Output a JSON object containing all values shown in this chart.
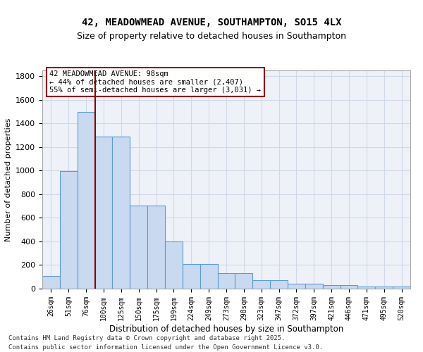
{
  "title_line1": "42, MEADOWMEAD AVENUE, SOUTHAMPTON, SO15 4LX",
  "title_line2": "Size of property relative to detached houses in Southampton",
  "xlabel": "Distribution of detached houses by size in Southampton",
  "ylabel": "Number of detached properties",
  "categories": [
    "26sqm",
    "51sqm",
    "76sqm",
    "100sqm",
    "125sqm",
    "150sqm",
    "175sqm",
    "199sqm",
    "224sqm",
    "249sqm",
    "273sqm",
    "298sqm",
    "323sqm",
    "347sqm",
    "372sqm",
    "397sqm",
    "421sqm",
    "446sqm",
    "471sqm",
    "495sqm",
    "520sqm"
  ],
  "values": [
    105,
    995,
    1500,
    1290,
    1290,
    705,
    705,
    400,
    210,
    210,
    130,
    130,
    70,
    70,
    40,
    40,
    30,
    30,
    20,
    20,
    20
  ],
  "bar_color": "#c9d9f0",
  "bar_edge_color": "#5b9bd5",
  "vline_x": 2,
  "vline_color": "#8b0000",
  "annotation_text": "42 MEADOWMEAD AVENUE: 98sqm\n← 44% of detached houses are smaller (2,407)\n55% of semi-detached houses are larger (3,031) →",
  "annotation_box_color": "#ffffff",
  "annotation_box_edge": "#8b0000",
  "ylim": [
    0,
    1850
  ],
  "yticks": [
    0,
    200,
    400,
    600,
    800,
    1000,
    1200,
    1400,
    1600,
    1800
  ],
  "grid_color": "#d0d8e8",
  "bg_color": "#eef2f8",
  "footer_line1": "Contains HM Land Registry data © Crown copyright and database right 2025.",
  "footer_line2": "Contains public sector information licensed under the Open Government Licence v3.0."
}
